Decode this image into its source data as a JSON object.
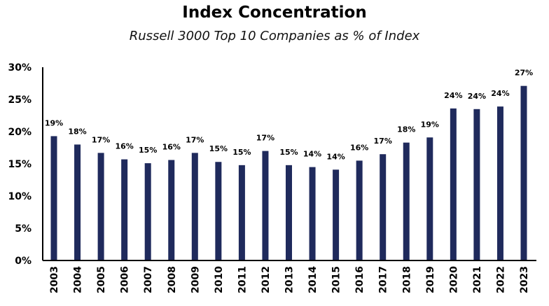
{
  "chart_data": {
    "type": "bar",
    "title": "Index Concentration",
    "subtitle": "Russell 3000 Top 10 Companies as % of Index",
    "xlabel": "",
    "ylabel": "",
    "categories": [
      "2003",
      "2004",
      "2005",
      "2006",
      "2007",
      "2008",
      "2009",
      "2010",
      "2011",
      "2012",
      "2013",
      "2014",
      "2015",
      "2016",
      "2017",
      "2018",
      "2019",
      "2020",
      "2021",
      "2022",
      "2023"
    ],
    "values": [
      19.3,
      18.0,
      16.7,
      15.7,
      15.1,
      15.6,
      16.7,
      15.3,
      14.8,
      17.0,
      14.8,
      14.5,
      14.1,
      15.5,
      16.5,
      18.3,
      19.1,
      23.6,
      23.5,
      23.9,
      27.1
    ],
    "data_labels": [
      "19%",
      "18%",
      "17%",
      "16%",
      "15%",
      "16%",
      "17%",
      "15%",
      "15%",
      "17%",
      "15%",
      "14%",
      "14%",
      "16%",
      "17%",
      "18%",
      "19%",
      "24%",
      "24%",
      "24%",
      "27%"
    ],
    "ylim": [
      0,
      30
    ],
    "yticks": [
      0,
      5,
      10,
      15,
      20,
      25,
      30
    ],
    "ytick_labels": [
      "0%",
      "5%",
      "10%",
      "15%",
      "20%",
      "25%",
      "30%"
    ],
    "grid": false,
    "legend": "none",
    "bar_color": "#1f2a5c"
  }
}
